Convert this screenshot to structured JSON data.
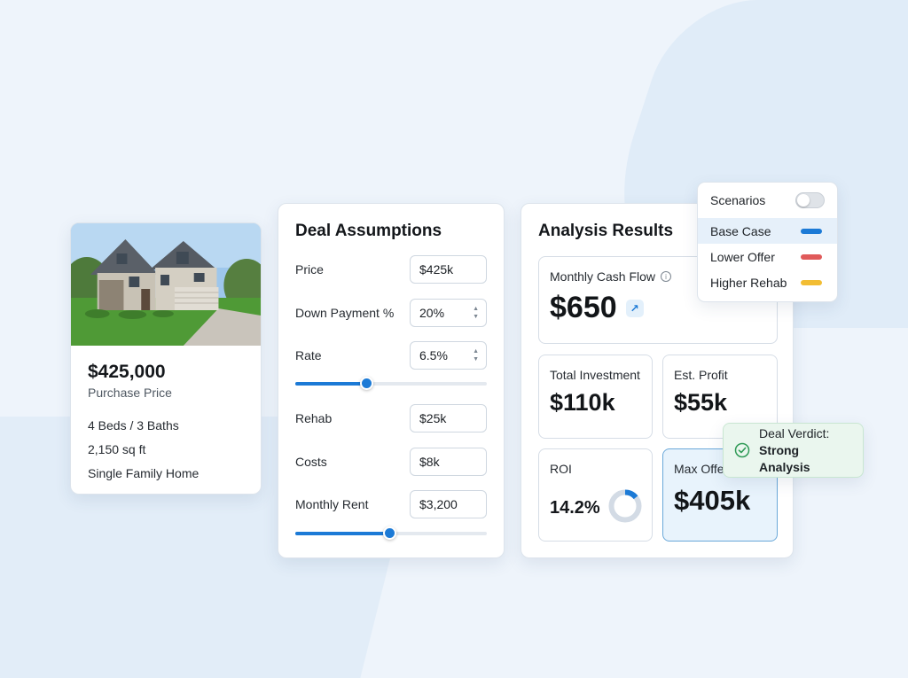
{
  "property": {
    "price": "$425,000",
    "price_label": "Purchase Price",
    "beds_baths": "4 Beds / 3 Baths",
    "area": "2,150 sq ft",
    "type": "Single Family Home"
  },
  "assumptions": {
    "title": "Deal Assumptions",
    "fields": [
      {
        "label": "Price",
        "value": "$425k"
      },
      {
        "label": "Down Payment %",
        "value": "20%"
      },
      {
        "label": "Rate",
        "value": "6.5%"
      },
      {
        "label": "Rehab",
        "value": "$25k"
      },
      {
        "label": "Costs",
        "value": "$8k"
      },
      {
        "label": "Monthly Rent",
        "value": "$3,200"
      }
    ],
    "sliders": {
      "rate_level": 0.37,
      "rent_level": 0.49
    }
  },
  "results": {
    "title": "Analysis Results",
    "monthly_cash_flow": {
      "label": "Monthly Cash Flow",
      "value": "$650"
    },
    "total_investment": {
      "label": "Total Investment",
      "value": "$110k"
    },
    "est_profit": {
      "label": "Est. Profit",
      "value": "$55k"
    },
    "roi": {
      "label": "ROI",
      "value": "14.2%",
      "donut_fraction": 0.142
    },
    "max_offer": {
      "label": "Max Offe",
      "value": "$405k"
    }
  },
  "scenarios": {
    "title": "Scenarios",
    "toggle_on": false,
    "items": [
      {
        "label": "Base Case",
        "color": "#1c7ad6",
        "selected": true
      },
      {
        "label": "Lower Offer",
        "color": "#e05a5a",
        "selected": false
      },
      {
        "label": "Higher Rehab",
        "color": "#f2bd33",
        "selected": false
      }
    ]
  },
  "verdict": {
    "label": "Deal Verdict:",
    "value": "Strong Analysis"
  },
  "icons": {
    "info": "info-icon",
    "trend": "arrow-up-right-icon",
    "check": "check-circle-icon"
  },
  "colors": {
    "accent": "#1c7ad6",
    "success": "#2f9a56"
  }
}
